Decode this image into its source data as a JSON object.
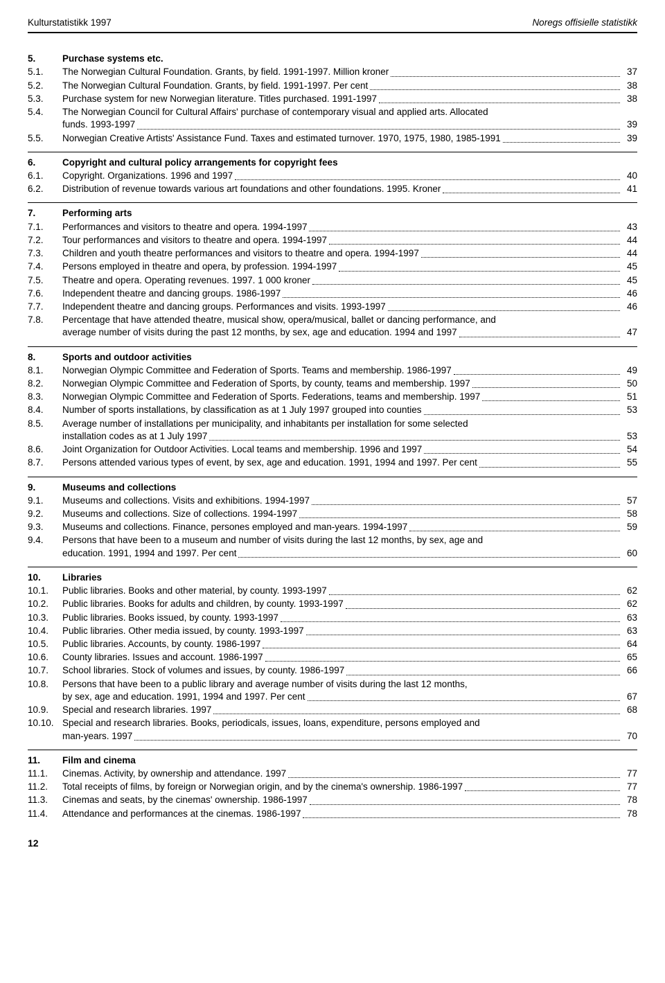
{
  "header": {
    "left": "Kulturstatistikk 1997",
    "right": "Noregs offisielle statistikk"
  },
  "sections": [
    {
      "num": "5.",
      "title": "Purchase systems etc.",
      "items": [
        {
          "num": "5.1.",
          "text": "The Norwegian Cultural Foundation. Grants, by field. 1991-1997. Million kroner",
          "page": "37"
        },
        {
          "num": "5.2.",
          "text": "The Norwegian Cultural Foundation. Grants, by field. 1991-1997. Per cent",
          "page": "38"
        },
        {
          "num": "5.3.",
          "text": "Purchase system for new Norwegian literature. Titles purchased. 1991-1997",
          "page": "38"
        },
        {
          "num": "5.4.",
          "text_lines": [
            "The Norwegian Council for Cultural Affairs' purchase of contemporary visual and applied arts. Allocated",
            "funds. 1993-1997"
          ],
          "page": "39"
        },
        {
          "num": "5.5.",
          "text": "Norwegian Creative Artists' Assistance Fund. Taxes and estimated turnover. 1970, 1975, 1980, 1985-1991",
          "page": "39"
        }
      ]
    },
    {
      "num": "6.",
      "title": "Copyright and cultural policy arrangements for copyright fees",
      "items": [
        {
          "num": "6.1.",
          "text": "Copyright. Organizations. 1996 and 1997",
          "page": "40"
        },
        {
          "num": "6.2.",
          "text": "Distribution of revenue towards various art foundations and other foundations. 1995. Kroner",
          "page": "41"
        }
      ]
    },
    {
      "num": "7.",
      "title": "Performing arts",
      "items": [
        {
          "num": "7.1.",
          "text": "Performances and visitors to theatre and opera. 1994-1997",
          "page": "43"
        },
        {
          "num": "7.2.",
          "text": "Tour performances and visitors to theatre and opera. 1994-1997",
          "page": "44"
        },
        {
          "num": "7.3.",
          "text": "Children and youth theatre performances and visitors to theatre and opera. 1994-1997",
          "page": "44"
        },
        {
          "num": "7.4.",
          "text": "Persons employed in theatre and opera, by profession. 1994-1997",
          "page": "45"
        },
        {
          "num": "7.5.",
          "text": "Theatre and opera. Operating revenues. 1997. 1 000 kroner",
          "page": "45"
        },
        {
          "num": "7.6.",
          "text": "Independent theatre and dancing groups. 1986-1997",
          "page": "46"
        },
        {
          "num": "7.7.",
          "text": "Independent theatre and dancing groups. Performances and visits. 1993-1997",
          "page": "46"
        },
        {
          "num": "7.8.",
          "text_lines": [
            "Percentage that have attended theatre, musical show, opera/musical, ballet or dancing performance, and",
            "average number of visits during the past 12 months, by sex, age and education. 1994 and 1997"
          ],
          "page": "47"
        }
      ]
    },
    {
      "num": "8.",
      "title": "Sports and outdoor activities",
      "items": [
        {
          "num": "8.1.",
          "text": "Norwegian Olympic Committee and Federation of Sports. Teams and membership. 1986-1997",
          "page": "49"
        },
        {
          "num": "8.2.",
          "text": "Norwegian Olympic Committee and Federation of Sports, by county, teams and membership. 1997",
          "page": "50"
        },
        {
          "num": "8.3.",
          "text": "Norwegian Olympic Committee and Federation of Sports. Federations, teams and membership. 1997",
          "page": "51"
        },
        {
          "num": "8.4.",
          "text": "Number of sports installations, by classification as at 1 July 1997 grouped into counties",
          "page": "53"
        },
        {
          "num": "8.5.",
          "text_lines": [
            "Average number of installations per municipality, and inhabitants per installation for some selected",
            "installation codes as at 1 July 1997"
          ],
          "page": "53"
        },
        {
          "num": "8.6.",
          "text": "Joint Organization for Outdoor Activities. Local teams and membership. 1996 and 1997",
          "page": "54"
        },
        {
          "num": "8.7.",
          "text": "Persons attended various types of event, by sex, age and education. 1991, 1994 and 1997. Per cent",
          "page": "55"
        }
      ]
    },
    {
      "num": "9.",
      "title": "Museums and collections",
      "items": [
        {
          "num": "9.1.",
          "text": "Museums and collections. Visits and exhibitions. 1994-1997",
          "page": "57"
        },
        {
          "num": "9.2.",
          "text": "Museums and collections. Size of collections. 1994-1997",
          "page": "58"
        },
        {
          "num": "9.3.",
          "text": "Museums and collections. Finance, persones employed and man-years. 1994-1997",
          "page": "59"
        },
        {
          "num": "9.4.",
          "text_lines": [
            "Persons that have been to a museum and number of visits during the last 12 months, by sex, age and",
            "education. 1991, 1994 and 1997. Per cent"
          ],
          "page": "60"
        }
      ]
    },
    {
      "num": "10.",
      "title": "Libraries",
      "items": [
        {
          "num": "10.1.",
          "text": "Public libraries. Books and other material, by county. 1993-1997",
          "page": "62"
        },
        {
          "num": "10.2.",
          "text": "Public libraries. Books for adults and children, by county. 1993-1997",
          "page": "62"
        },
        {
          "num": "10.3.",
          "text": "Public libraries. Books issued, by county. 1993-1997",
          "page": "63"
        },
        {
          "num": "10.4.",
          "text": "Public libraries. Other media issued, by county. 1993-1997",
          "page": "63"
        },
        {
          "num": "10.5.",
          "text": "Public libraries. Accounts, by county. 1986-1997",
          "page": "64"
        },
        {
          "num": "10.6.",
          "text": "County libraries. Issues and account. 1986-1997",
          "page": "65"
        },
        {
          "num": "10.7.",
          "text": "School libraries. Stock of volumes and issues, by county. 1986-1997",
          "page": "66"
        },
        {
          "num": "10.8.",
          "text_lines": [
            "Persons that have been to a public library and average number of visits during the last 12 months,",
            "by sex, age and education. 1991, 1994 and 1997. Per cent"
          ],
          "page": "67"
        },
        {
          "num": "10.9.",
          "text": "Special and research libraries. 1997",
          "page": "68"
        },
        {
          "num": "10.10.",
          "text_lines": [
            "Special and research libraries. Books, periodicals, issues, loans, expenditure, persons employed and",
            "man-years. 1997"
          ],
          "page": "70"
        }
      ]
    },
    {
      "num": "11.",
      "title": "Film and cinema",
      "items": [
        {
          "num": "11.1.",
          "text": "Cinemas. Activity, by ownership and attendance. 1997",
          "page": "77"
        },
        {
          "num": "11.2.",
          "text": "Total receipts of films, by foreign or Norwegian origin, and by the cinema's ownership. 1986-1997",
          "page": "77"
        },
        {
          "num": "11.3.",
          "text": "Cinemas and seats, by the cinemas' ownership. 1986-1997",
          "page": "78"
        },
        {
          "num": "11.4.",
          "text": "Attendance and performances at the cinemas. 1986-1997",
          "page": "78"
        }
      ]
    }
  ],
  "footer_page": "12"
}
